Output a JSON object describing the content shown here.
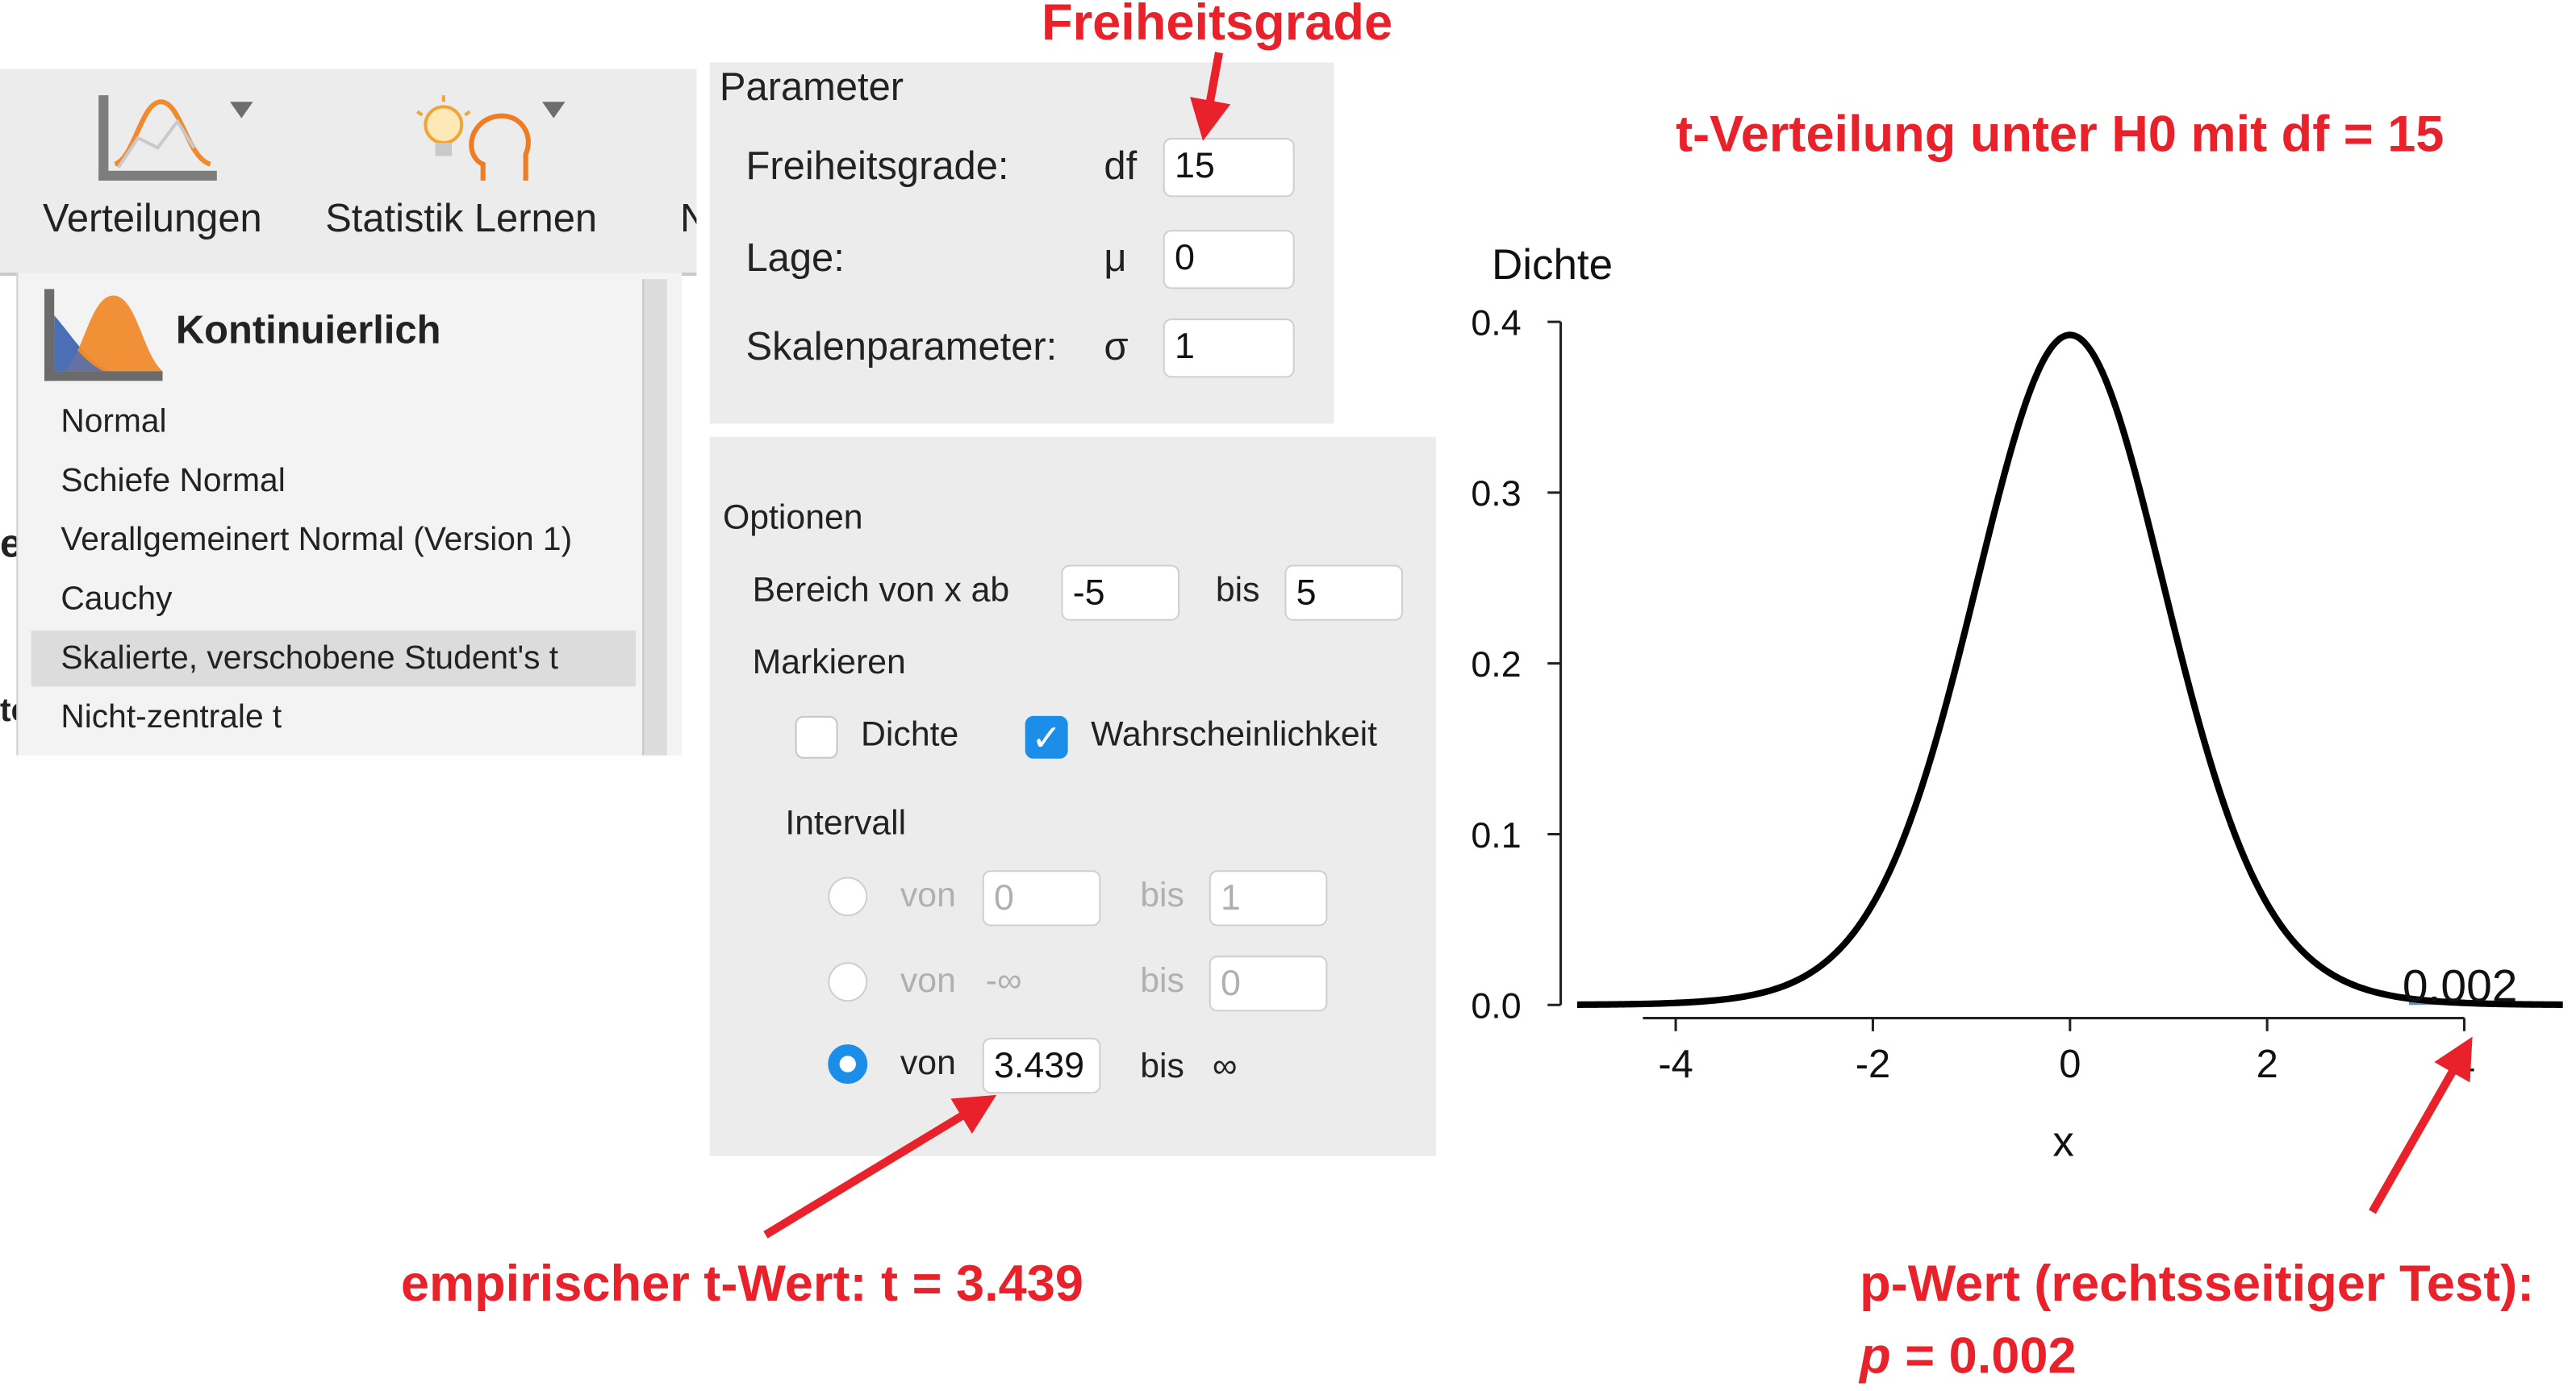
{
  "ribbon": {
    "tabs": [
      {
        "label": "Verteilungen",
        "icon": "distribution-chart-icon"
      },
      {
        "label": "Statistik Lernen",
        "icon": "lightbulb-head-icon"
      },
      {
        "label": "N"
      }
    ],
    "left_edge_fragments": [
      "e",
      "te"
    ]
  },
  "menu": {
    "header": "Kontinuierlich",
    "items": [
      "Normal",
      "Schiefe Normal",
      "Verallgemeinert Normal (Version 1)",
      "Cauchy",
      "Skalierte, verschobene Student's t",
      "Nicht-zentrale t"
    ],
    "selected": "Skalierte, verschobene Student's t"
  },
  "parameter": {
    "title": "Parameter",
    "rows": [
      {
        "label": "Freiheitsgrade:",
        "symbol": "df",
        "value": "15"
      },
      {
        "label": "Lage:",
        "symbol": "μ",
        "value": "0"
      },
      {
        "label": "Skalenparameter:",
        "symbol": "σ",
        "value": "1"
      }
    ]
  },
  "options": {
    "title": "Optionen",
    "range_label": "Bereich von x ab",
    "range_from": "-5",
    "range_to_label": "bis",
    "range_to": "5",
    "mark_label": "Markieren",
    "density_label": "Dichte",
    "density_checked": false,
    "probability_label": "Wahrscheinlichkeit",
    "probability_checked": true,
    "interval_label": "Intervall",
    "intervals": [
      {
        "from_label": "von",
        "from": "0",
        "to_label": "bis",
        "to": "1",
        "selected": false
      },
      {
        "from_label": "von",
        "from": "-∞",
        "to_label": "bis",
        "to": "0",
        "selected": false
      },
      {
        "from_label": "von",
        "from": "3.439",
        "to_label": "bis",
        "to": "∞",
        "selected": true
      }
    ]
  },
  "annotations": {
    "df_label": "Freiheitsgrade",
    "chart_title": "t-Verteilung unter H0 mit df = 15",
    "t_value": "empirischer t-Wert: t = 3.439",
    "p_line1": "p-Wert (rechtsseitiger Test):",
    "p_letter": "p",
    "p_line2_rest": " = 0.002",
    "color": "#e8212a"
  },
  "chart_data": {
    "type": "line",
    "distribution": "Student t",
    "df": 15,
    "ylabel": "Dichte",
    "xlabel": "x",
    "xlim": [
      -5,
      5
    ],
    "ylim": [
      0,
      0.4
    ],
    "x_ticks": [
      -4,
      -2,
      0,
      2,
      4
    ],
    "y_ticks": [
      0.0,
      0.1,
      0.2,
      0.3,
      0.4
    ],
    "x_tick_labels": [
      "-4",
      "-2",
      "0",
      "2",
      "4"
    ],
    "y_tick_labels": [
      "0.0",
      "0.1",
      "0.2",
      "0.3",
      "0.4"
    ],
    "shaded_from": 3.439,
    "shaded_label": "0.002",
    "curve_color": "#000000",
    "shade_color": "#5b8fd1"
  }
}
